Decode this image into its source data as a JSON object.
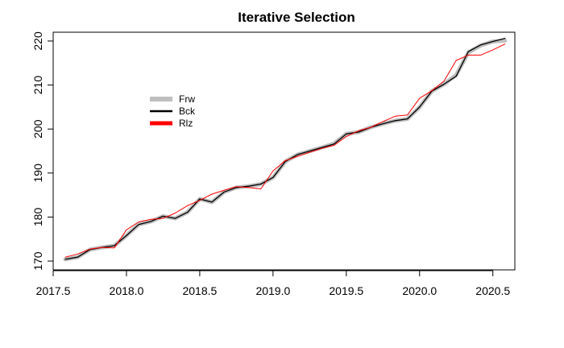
{
  "chart_data": {
    "type": "line",
    "title": "Iterative Selection",
    "xlabel": "",
    "ylabel": "",
    "xlim": [
      2017.5,
      2020.65
    ],
    "ylim": [
      168,
      222
    ],
    "x_ticks": [
      2017.5,
      2018.0,
      2018.5,
      2019.0,
      2019.5,
      2020.0,
      2020.5
    ],
    "x_tick_labels": [
      "2017.5",
      "2018.0",
      "2018.5",
      "2019.0",
      "2019.5",
      "2020.0",
      "2020.5"
    ],
    "y_ticks": [
      170,
      180,
      190,
      200,
      210,
      220
    ],
    "y_tick_labels": [
      "170",
      "180",
      "190",
      "200",
      "210",
      "220"
    ],
    "grid": false,
    "legend_position": "upper-left",
    "x": [
      2017.583,
      2017.667,
      2017.75,
      2017.833,
      2017.917,
      2018.0,
      2018.083,
      2018.167,
      2018.25,
      2018.333,
      2018.417,
      2018.5,
      2018.583,
      2018.667,
      2018.75,
      2018.833,
      2018.917,
      2019.0,
      2019.083,
      2019.167,
      2019.25,
      2019.333,
      2019.417,
      2019.5,
      2019.583,
      2019.667,
      2019.75,
      2019.833,
      2019.917,
      2020.0,
      2020.083,
      2020.167,
      2020.25,
      2020.333,
      2020.417,
      2020.5,
      2020.583
    ],
    "series": [
      {
        "name": "Frw",
        "color": "#bebebe",
        "width": 5,
        "values": [
          170.4,
          170.9,
          172.6,
          173.1,
          173.5,
          175.8,
          178.3,
          179.0,
          180.2,
          179.7,
          181.1,
          184.1,
          183.4,
          185.7,
          186.7,
          187.0,
          187.5,
          189.0,
          192.6,
          194.2,
          195.0,
          195.8,
          196.7,
          198.9,
          199.3,
          200.4,
          201.2,
          201.9,
          202.3,
          205.0,
          208.6,
          210.2,
          212.3,
          217.4,
          219.0,
          219.9,
          220.1
        ]
      },
      {
        "name": "Bck",
        "color": "#000000",
        "width": 1.3,
        "values": [
          170.4,
          170.9,
          172.6,
          173.1,
          173.5,
          175.8,
          178.3,
          179.0,
          180.2,
          179.7,
          181.1,
          184.1,
          183.4,
          185.7,
          186.7,
          187.0,
          187.5,
          189.0,
          192.6,
          194.2,
          195.0,
          195.8,
          196.6,
          198.9,
          199.3,
          200.4,
          201.2,
          201.9,
          202.3,
          205.0,
          208.6,
          210.2,
          212.0,
          217.6,
          219.1,
          219.9,
          220.6
        ]
      },
      {
        "name": "Rlz",
        "color": "#ff0000",
        "width": 1,
        "values": [
          170.9,
          171.6,
          172.7,
          173.1,
          173.0,
          177.1,
          178.9,
          179.5,
          179.7,
          180.9,
          182.6,
          183.8,
          185.2,
          186.1,
          186.9,
          186.7,
          186.4,
          190.5,
          192.8,
          193.8,
          194.7,
          195.6,
          196.3,
          198.3,
          199.6,
          200.4,
          201.7,
          202.9,
          203.2,
          207.0,
          208.7,
          210.9,
          215.6,
          216.8,
          216.8,
          218.0,
          219.3
        ]
      }
    ]
  }
}
